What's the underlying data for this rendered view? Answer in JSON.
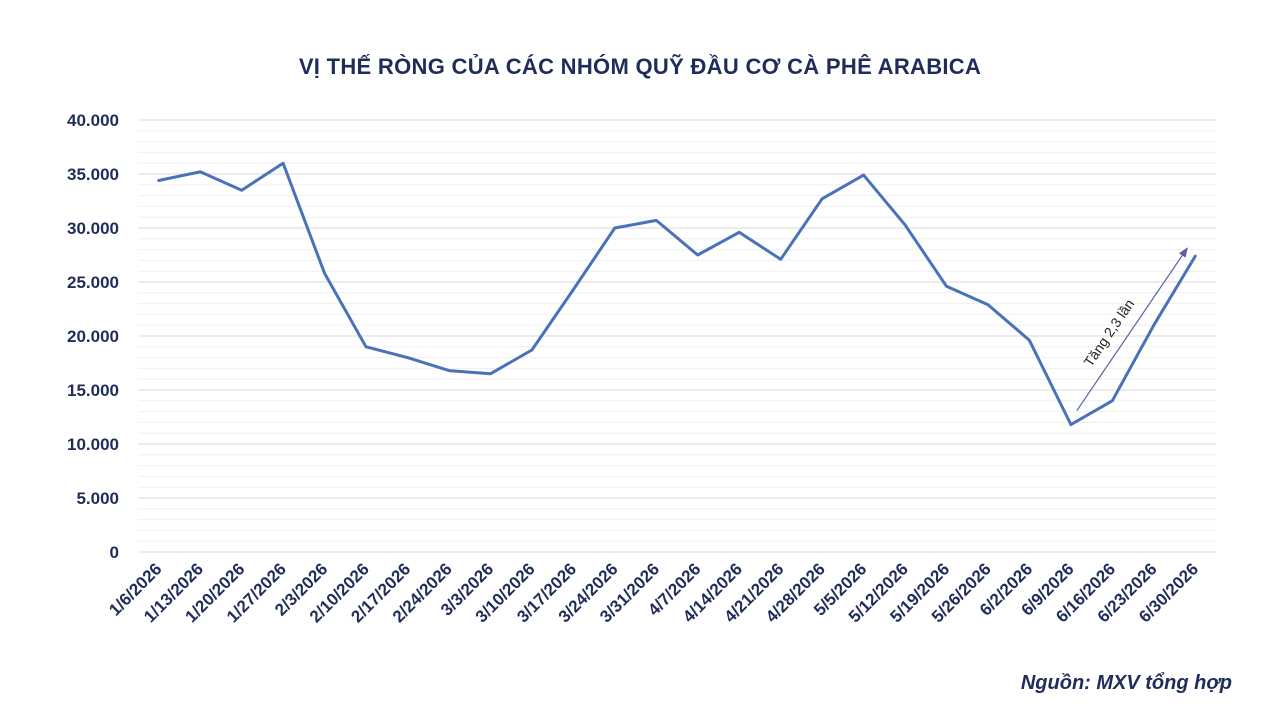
{
  "chart_data": {
    "type": "line",
    "title": "VỊ THẾ RÒNG CỦA CÁC NHÓM QUỸ ĐẦU CƠ CÀ PHÊ ARABICA",
    "categories": [
      "1/6/2026",
      "1/13/2026",
      "1/20/2026",
      "1/27/2026",
      "2/3/2026",
      "2/10/2026",
      "2/17/2026",
      "2/24/2026",
      "3/3/2026",
      "3/10/2026",
      "3/17/2026",
      "3/24/2026",
      "3/31/2026",
      "4/7/2026",
      "4/14/2026",
      "4/21/2026",
      "4/28/2026",
      "5/5/2026",
      "5/12/2026",
      "5/19/2026",
      "5/26/2026",
      "6/2/2026",
      "6/9/2026",
      "6/16/2026",
      "6/23/2026",
      "6/30/2026"
    ],
    "series": [
      {
        "values": [
          34400,
          35200,
          33500,
          36000,
          25800,
          19000,
          18000,
          16800,
          16500,
          18700,
          24300,
          30000,
          30700,
          27500,
          29600,
          27100,
          32700,
          34900,
          30300,
          24600,
          22900,
          19600,
          11800,
          14000,
          21000,
          27400
        ],
        "color": "#4a72b8"
      }
    ],
    "ylim": [
      0,
      40000
    ],
    "yticks": [
      "0",
      "5.000",
      "10.000",
      "15.000",
      "20.000",
      "25.000",
      "30.000",
      "35.000",
      "40.000"
    ],
    "grid": true,
    "annotation": {
      "text": "Tăng 2,3 lần",
      "from_category": "6/9/2026",
      "to_category": "6/30/2026",
      "arrow": true
    },
    "source": "Nguồn: MXV tổng hợp",
    "colors": {
      "title": "#1f2d5a",
      "axis_text": "#1f2d5a",
      "major_grid": "#d9d9d9",
      "minor_grid": "#efefef",
      "annotation_arrow": "#5b5fa8"
    }
  }
}
